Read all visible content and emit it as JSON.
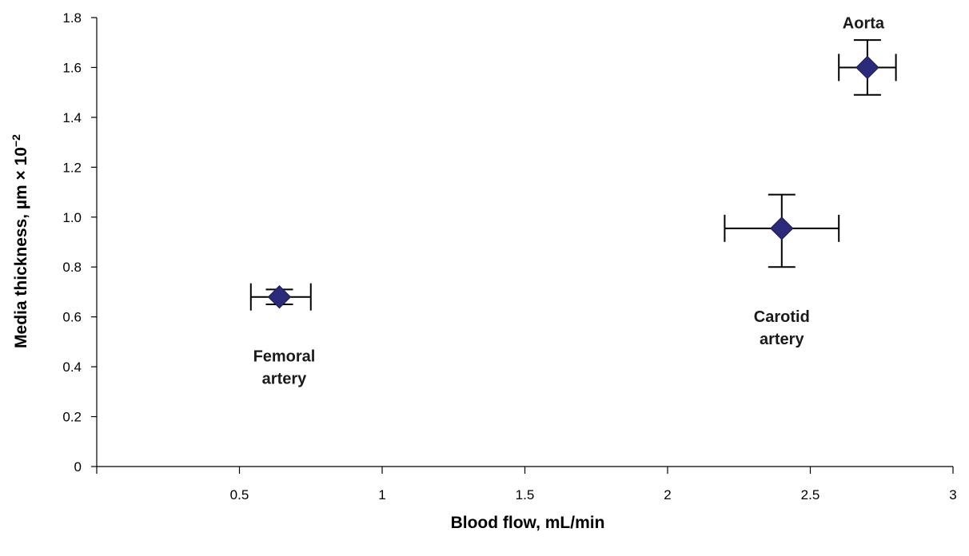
{
  "chart_data": {
    "type": "scatter",
    "xlabel": "Blood flow, mL/min",
    "ylabel_main": "Media thickness, µm × 10",
    "ylabel_sup": "−2",
    "xlim": [
      0,
      3
    ],
    "ylim": [
      0,
      1.8
    ],
    "x_ticks": [
      0.5,
      1,
      1.5,
      2,
      2.5,
      3
    ],
    "x_tick_labels": [
      "0.5",
      "1",
      "1.5",
      "2",
      "2.5",
      "3"
    ],
    "y_ticks": [
      0,
      0.2,
      0.4,
      0.6,
      0.8,
      1.0,
      1.2,
      1.4,
      1.6,
      1.8
    ],
    "y_tick_labels": [
      "0",
      "0.2",
      "0.4",
      "0.6",
      "0.8",
      "1.0",
      "1.2",
      "1.4",
      "1.6",
      "1.8"
    ],
    "grid": false,
    "marker": "diamond",
    "marker_color": "#2b2a7a",
    "points": [
      {
        "label_lines": [
          "Femoral",
          "artery"
        ],
        "x": 0.64,
        "y": 0.68,
        "x_err_low": 0.54,
        "x_err_high": 0.75,
        "y_err_low": 0.65,
        "y_err_high": 0.71
      },
      {
        "label_lines": [
          "Carotid",
          "artery"
        ],
        "x": 2.4,
        "y": 0.955,
        "x_err_low": 2.2,
        "x_err_high": 2.6,
        "y_err_low": 0.8,
        "y_err_high": 1.09
      },
      {
        "label_lines": [
          "Aorta"
        ],
        "x": 2.7,
        "y": 1.6,
        "x_err_low": 2.6,
        "x_err_high": 2.8,
        "y_err_low": 1.49,
        "y_err_high": 1.71
      }
    ]
  }
}
